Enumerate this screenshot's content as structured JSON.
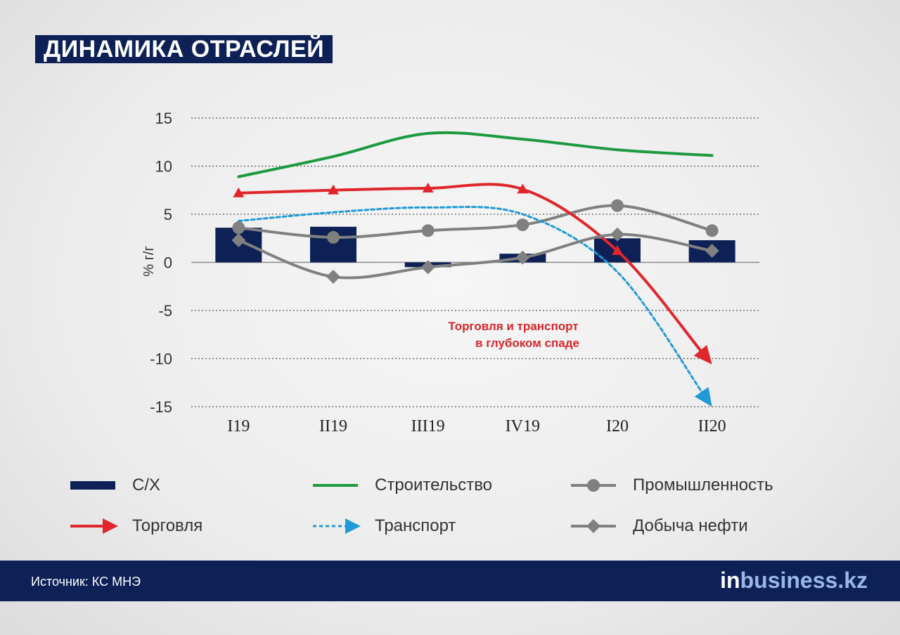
{
  "header": {
    "title": "ДИНАМИКА ОТРАСЛЕЙ"
  },
  "chart_data": {
    "type": "bar",
    "ylabel": "% г/г",
    "ylim": [
      -15,
      15
    ],
    "yticks": [
      15,
      10,
      5,
      0,
      -5,
      -10,
      -15
    ],
    "grid": true,
    "categories": [
      "I19",
      "II19",
      "III19",
      "IV19",
      "I20",
      "II20"
    ],
    "series": [
      {
        "name": "С/Х",
        "kind": "bar",
        "color": "#0d2157",
        "values": [
          3.6,
          3.7,
          -0.5,
          0.9,
          2.5,
          2.3
        ]
      },
      {
        "name": "Строительство",
        "kind": "line",
        "color": "#1d9a40",
        "marker": "none",
        "values": [
          8.9,
          11.0,
          13.4,
          12.8,
          11.7,
          11.1
        ]
      },
      {
        "name": "Промышленность",
        "kind": "line",
        "color": "#808080",
        "marker": "circle",
        "values": [
          3.6,
          2.6,
          3.3,
          3.9,
          5.9,
          3.3
        ]
      },
      {
        "name": "Торговля",
        "kind": "line",
        "color": "#e0262b",
        "marker": "triangle",
        "arrow": true,
        "values": [
          7.2,
          7.5,
          7.7,
          7.6,
          1.2,
          -10.6
        ]
      },
      {
        "name": "Транспорт",
        "kind": "line",
        "color": "#1f9ad6",
        "dashed": true,
        "arrow": true,
        "values": [
          4.3,
          5.2,
          5.7,
          5.0,
          -1.0,
          -15.0
        ]
      },
      {
        "name": "Добыча нефти",
        "kind": "line",
        "color": "#808080",
        "marker": "diamond",
        "values": [
          2.3,
          -1.5,
          -0.5,
          0.5,
          2.9,
          1.2
        ]
      }
    ],
    "annotation": [
      "Торговля и транспорт",
      "в глубоком спаде"
    ]
  },
  "legend": {
    "items": [
      {
        "label": "С/Х",
        "symbol": "bar",
        "color": "#0d2157"
      },
      {
        "label": "Строительство",
        "symbol": "line",
        "color": "#1d9a40"
      },
      {
        "label": "Промышленность",
        "symbol": "circle-line",
        "color": "#808080"
      },
      {
        "label": "Торговля",
        "symbol": "arrow-line",
        "color": "#e0262b"
      },
      {
        "label": "Транспорт",
        "symbol": "dashed-arrow",
        "color": "#1f9ad6"
      },
      {
        "label": "Добыча нефти",
        "symbol": "diamond-line",
        "color": "#808080"
      }
    ]
  },
  "footer": {
    "source": "Источник:  КС МНЭ",
    "brand_in": "in",
    "brand_rest": "business.kz"
  }
}
